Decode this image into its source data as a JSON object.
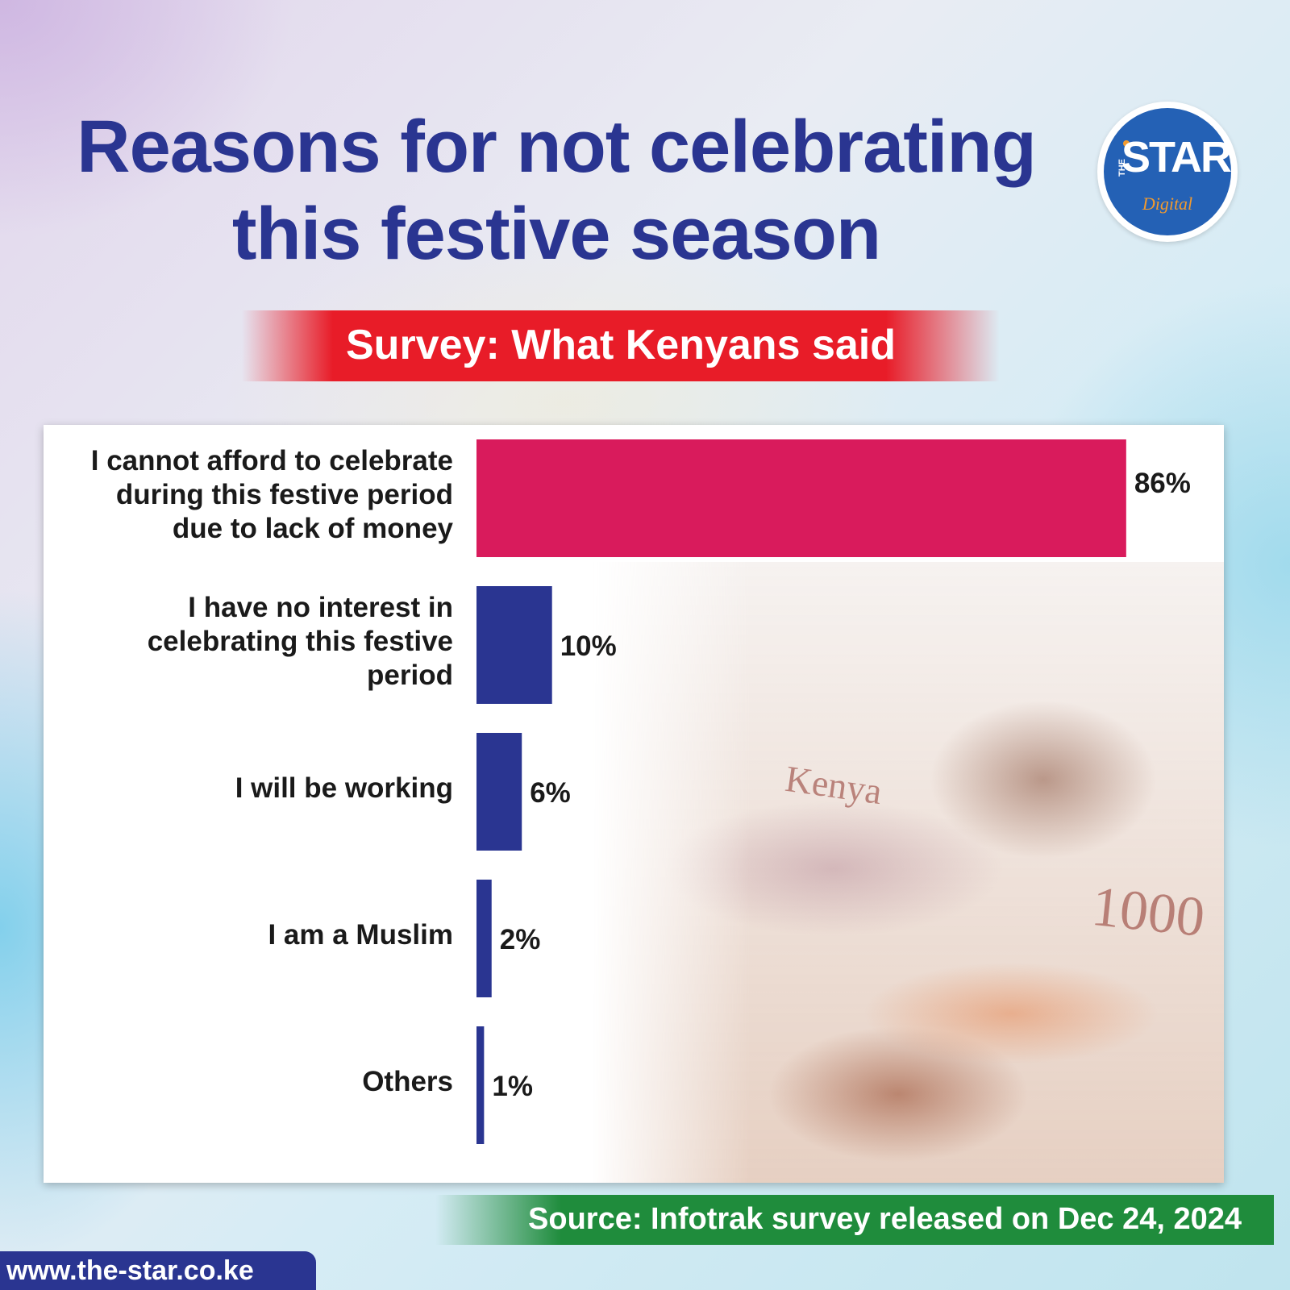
{
  "header": {
    "title_line1": "Reasons for not celebrating",
    "title_line2": "this festive season",
    "subtitle": "Survey: What Kenyans said"
  },
  "logo": {
    "the": "THE",
    "star": "STAR",
    "digital": "Digital"
  },
  "colors": {
    "title": "#2a3591",
    "highlight_bar": "#d91b5c",
    "bar": "#2a3591",
    "subtitle_band": "#e81c28",
    "source_band": "#1f8c3c"
  },
  "chart_data": {
    "type": "bar",
    "orientation": "horizontal",
    "categories": [
      [
        "I cannot afford to celebrate",
        "during this festive period",
        "due to lack of money"
      ],
      [
        "I have no interest in",
        "celebrating this festive",
        "period"
      ],
      [
        "I will be working"
      ],
      [
        "I am a Muslim"
      ],
      [
        "Others"
      ]
    ],
    "values": [
      86,
      10,
      6,
      2,
      1
    ],
    "value_labels": [
      "86%",
      "10%",
      "6%",
      "2%",
      "1%"
    ],
    "unit": "%",
    "xlim": [
      0,
      100
    ],
    "grid": false,
    "legend": "none"
  },
  "footer": {
    "source": "Source: Infotrak survey released on Dec 24, 2024",
    "url": "www.the-star.co.ke"
  },
  "background_image": {
    "note_text_1000": "1000",
    "note_text_kenya": "Kenya"
  }
}
